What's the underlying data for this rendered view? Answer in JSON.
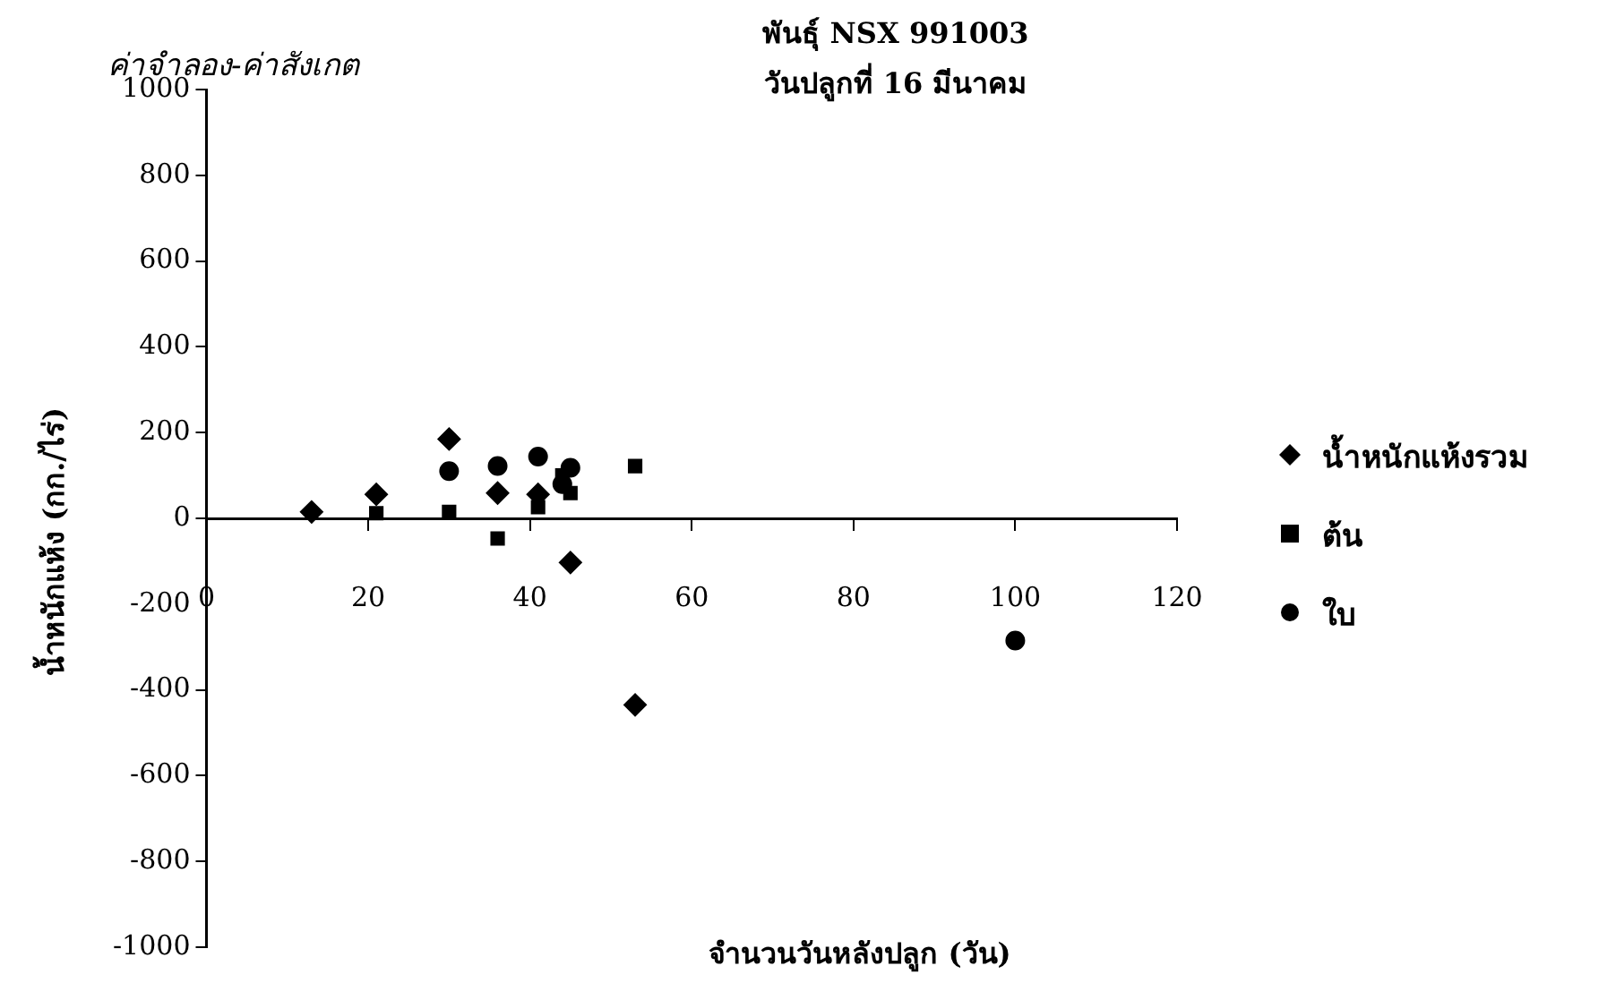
{
  "chart_data": {
    "type": "scatter",
    "title": "พันธุ์ NSX 991003",
    "subtitle": "วันปลูกที่ 16 มีนาคม",
    "xlabel": "จำนวนวันหลังปลูก (วัน)",
    "ylabel": "น้ำหนักแห้ง (กก./ไร่)",
    "annotations": [
      "ค่าจำลอง-ค่าสังเกต"
    ],
    "xlim": [
      0,
      120
    ],
    "xticks": [
      0,
      20,
      40,
      60,
      80,
      100,
      120
    ],
    "ylim": [
      -1000,
      1000
    ],
    "yticks": [
      -1000,
      -800,
      -600,
      -400,
      -200,
      0,
      200,
      400,
      600,
      800,
      1000
    ],
    "grid": false,
    "legend": "right",
    "series": [
      {
        "name": "น้ำหนักแห้งรวม",
        "color": "#000000",
        "marker": "diamond",
        "x": [
          13,
          21,
          30,
          36,
          41,
          45,
          53
        ],
        "values": [
          15,
          56,
          185,
          59,
          56,
          -103,
          -435
        ]
      },
      {
        "name": "ต้น",
        "color": "#000000",
        "marker": "square",
        "x": [
          21,
          30,
          36,
          41,
          44,
          45,
          53
        ],
        "values": [
          12,
          15,
          -47,
          26,
          100,
          59,
          122
        ]
      },
      {
        "name": "ใบ",
        "color": "#000000",
        "marker": "circle",
        "x": [
          30,
          36,
          41,
          44,
          45,
          100
        ],
        "values": [
          110,
          122,
          144,
          80,
          118,
          -285
        ]
      }
    ]
  }
}
